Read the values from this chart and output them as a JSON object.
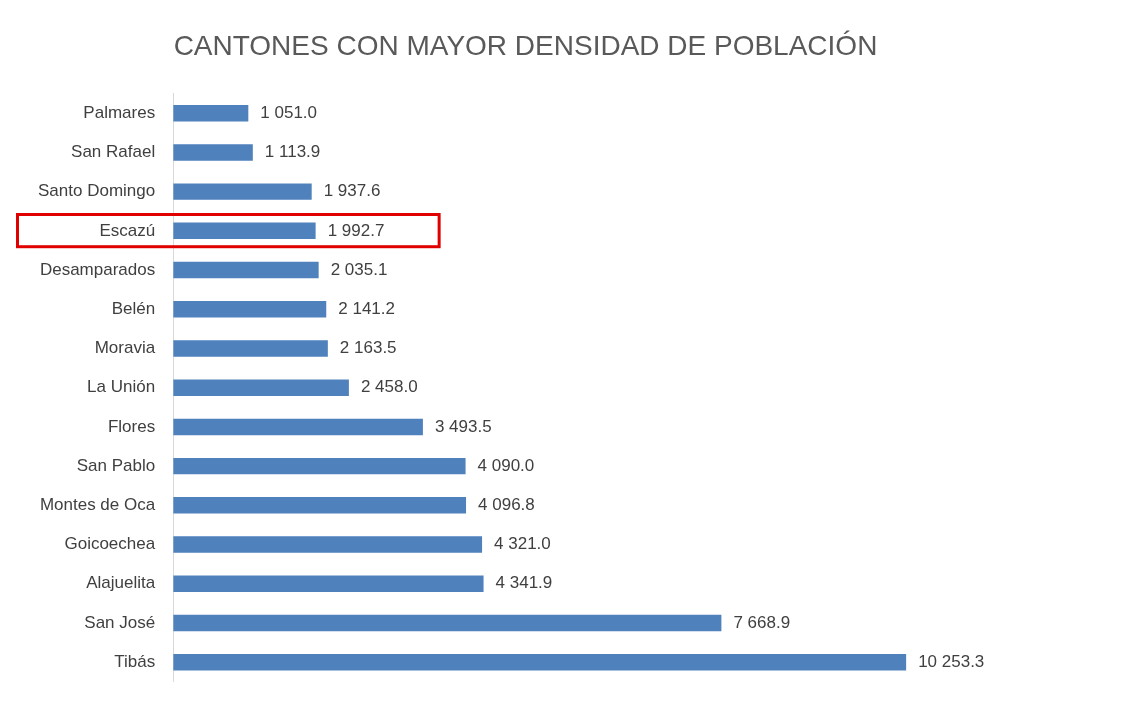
{
  "chart_data": {
    "type": "bar",
    "orientation": "horizontal",
    "title": "CANTONES CON MAYOR DENSIDAD DE POBLACIÓN",
    "categories": [
      "Palmares",
      "San Rafael",
      "Santo Domingo",
      "Escazú",
      "Desamparados",
      "Belén",
      "Moravia",
      "La Unión",
      "Flores",
      "San Pablo",
      "Montes de Oca",
      "Goicoechea",
      "Alajuelita",
      "San José",
      "Tibás"
    ],
    "values": [
      1051.0,
      1113.9,
      1937.6,
      1992.7,
      2035.1,
      2141.2,
      2163.5,
      2458.0,
      3493.5,
      4090.0,
      4096.8,
      4321.0,
      4341.9,
      7668.9,
      10253.3
    ],
    "value_labels": [
      "1 051.0",
      "1 113.9",
      "1 937.6",
      "1 992.7",
      "2 035.1",
      "2 141.2",
      "2 163.5",
      "2 458.0",
      "3 493.5",
      "4 090.0",
      "4 096.8",
      "4 321.0",
      "4 341.9",
      "7 668.9",
      "10 253.3"
    ],
    "color": "#4f81bd",
    "tick_labels": "y"
  }
}
